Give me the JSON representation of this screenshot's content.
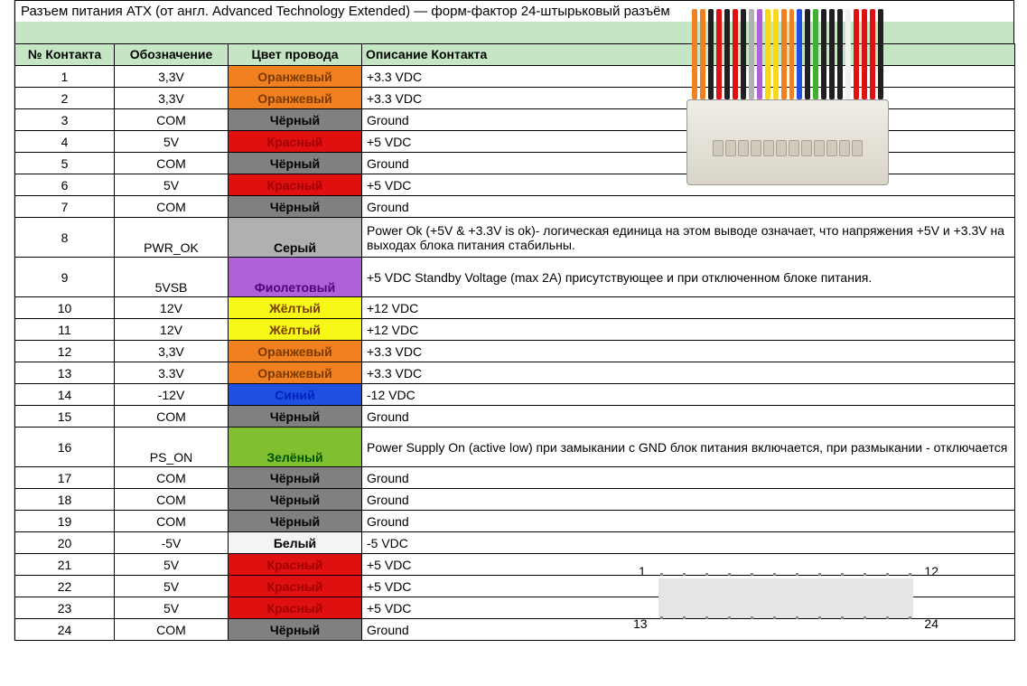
{
  "title": "Разъем питания ATX (от англ. Advanced Technology Extended) — форм-фактор 24-штырьковый разъём",
  "headers": {
    "contact": "№ Контакта",
    "designation": "Обозначение",
    "color": "Цвет провода",
    "description": "Описание Контакта"
  },
  "colors": {
    "header_bg": "#c4e6c4",
    "orange": "#f08020",
    "black": "#808080",
    "red": "#e01010",
    "gray": "#b0b0b0",
    "purple": "#b060d8",
    "yellow": "#f8f818",
    "blue": "#2050e0",
    "green": "#80c030",
    "white": "#f4f4f4",
    "txt_white": "#ffffff",
    "txt_brown": "#7a3a00",
    "txt_black": "#000000",
    "txt_blue": "#0020c0",
    "txt_red": "#a00000",
    "txt_dkgreen": "#005000",
    "txt_purple": "#500080"
  },
  "rows": [
    {
      "n": "1",
      "d": "3,3V",
      "c": "Оранжевый",
      "bg": "orange",
      "txt": "txt_brown",
      "desc": "+3.3 VDC",
      "h": false
    },
    {
      "n": "2",
      "d": "3,3V",
      "c": "Оранжевый",
      "bg": "orange",
      "txt": "txt_brown",
      "desc": "+3.3 VDC",
      "h": false
    },
    {
      "n": "3",
      "d": "COM",
      "c": "Чёрный",
      "bg": "black",
      "txt": "txt_black",
      "desc": "Ground",
      "h": false
    },
    {
      "n": "4",
      "d": "5V",
      "c": "Красный",
      "bg": "red",
      "txt": "txt_red",
      "desc": "+5 VDC",
      "h": false
    },
    {
      "n": "5",
      "d": "COM",
      "c": "Чёрный",
      "bg": "black",
      "txt": "txt_black",
      "desc": "Ground",
      "h": false
    },
    {
      "n": "6",
      "d": "5V",
      "c": "Красный",
      "bg": "red",
      "txt": "txt_red",
      "desc": "+5 VDC",
      "h": false
    },
    {
      "n": "7",
      "d": "COM",
      "c": "Чёрный",
      "bg": "black",
      "txt": "txt_black",
      "desc": "Ground",
      "h": false
    },
    {
      "n": "8",
      "d": "PWR_OK",
      "c": "Серый",
      "bg": "gray",
      "txt": "txt_black",
      "desc": "Power Ok (+5V & +3.3V is ok)- логическая единица на этом выводе означает, что напряжения +5V и +3.3V на выходах блока питания стабильны.",
      "h": true
    },
    {
      "n": "9",
      "d": "5VSB",
      "c": "Фиолетовый",
      "bg": "purple",
      "txt": "txt_purple",
      "desc": "+5 VDC Standby Voltage (max 2A)  присутствующее и при отключенном блоке питания.",
      "h": true
    },
    {
      "n": "10",
      "d": "12V",
      "c": "Жёлтый",
      "bg": "yellow",
      "txt": "txt_brown",
      "desc": "+12 VDC",
      "h": false
    },
    {
      "n": "11",
      "d": "12V",
      "c": "Жёлтый",
      "bg": "yellow",
      "txt": "txt_brown",
      "desc": "+12 VDC",
      "h": false
    },
    {
      "n": "12",
      "d": "3,3V",
      "c": "Оранжевый",
      "bg": "orange",
      "txt": "txt_brown",
      "desc": "+3.3 VDC",
      "h": false
    },
    {
      "n": "13",
      "d": "3.3V",
      "c": "Оранжевый",
      "bg": "orange",
      "txt": "txt_brown",
      "desc": "+3.3 VDC",
      "h": false
    },
    {
      "n": "14",
      "d": "-12V",
      "c": "Синий",
      "bg": "blue",
      "txt": "txt_blue",
      "desc": "-12 VDC",
      "h": false
    },
    {
      "n": "15",
      "d": "COM",
      "c": "Чёрный",
      "bg": "black",
      "txt": "txt_black",
      "desc": "Ground",
      "h": false
    },
    {
      "n": "16",
      "d": "PS_ON",
      "c": "Зелёный",
      "bg": "green",
      "txt": "txt_dkgreen",
      "desc": "Power Supply On (active low) при замыкании с GND блок питания включается, при размыкании - отключается",
      "h": true
    },
    {
      "n": "17",
      "d": "COM",
      "c": "Чёрный",
      "bg": "black",
      "txt": "txt_black",
      "desc": "Ground",
      "h": false
    },
    {
      "n": "18",
      "d": "COM",
      "c": "Чёрный",
      "bg": "black",
      "txt": "txt_black",
      "desc": "Ground",
      "h": false
    },
    {
      "n": "19",
      "d": "COM",
      "c": "Чёрный",
      "bg": "black",
      "txt": "txt_black",
      "desc": "Ground",
      "h": false
    },
    {
      "n": "20",
      "d": "-5V",
      "c": "Белый",
      "bg": "white",
      "txt": "txt_black",
      "desc": "-5 VDC",
      "h": false
    },
    {
      "n": "21",
      "d": "5V",
      "c": "Красный",
      "bg": "red",
      "txt": "txt_red",
      "desc": "+5 VDC",
      "h": false
    },
    {
      "n": "22",
      "d": "5V",
      "c": "Красный",
      "bg": "red",
      "txt": "txt_red",
      "desc": "+5 VDC",
      "h": false
    },
    {
      "n": "23",
      "d": "5V",
      "c": "Красный",
      "bg": "red",
      "txt": "txt_red",
      "desc": "+5 VDC",
      "h": false
    },
    {
      "n": "24",
      "d": "COM",
      "c": "Чёрный",
      "bg": "black",
      "txt": "txt_black",
      "desc": "Ground",
      "h": false
    }
  ],
  "wire_colors": [
    "#f08020",
    "#f08020",
    "#202020",
    "#e01010",
    "#202020",
    "#e01010",
    "#202020",
    "#b0b0b0",
    "#b060d8",
    "#f8d818",
    "#f8d818",
    "#f08020",
    "#f08020",
    "#2050e0",
    "#202020",
    "#40b030",
    "#202020",
    "#202020",
    "#202020",
    "#f0f0f0",
    "#e01010",
    "#e01010",
    "#e01010",
    "#202020"
  ],
  "diagram_labels": {
    "l1": "1",
    "l12": "12",
    "l13": "13",
    "l24": "24"
  }
}
